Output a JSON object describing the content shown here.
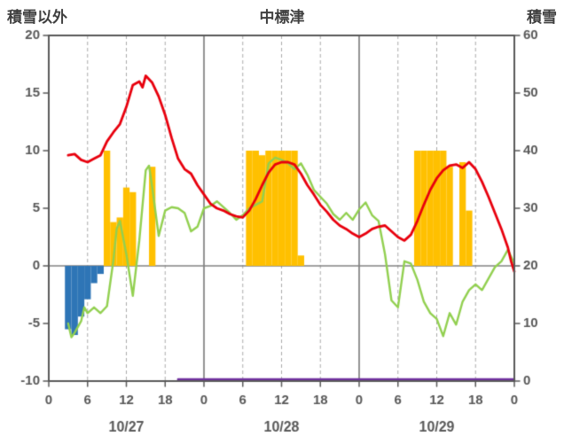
{
  "header": {
    "left_axis_title": "積雪以外",
    "station_title": "中標津",
    "right_axis_title": "積雪"
  },
  "colors": {
    "axis_border": "#595959",
    "tick_text": "#595959",
    "grid_dashed": "#aaaaaa",
    "day_boundary": "#6e6e6e",
    "zero_line": "#808080",
    "background": "#ffffff"
  },
  "chart_data": {
    "type": "line",
    "title": "中標津",
    "left_axis": {
      "label": "積雪以外",
      "min": -10,
      "max": 20,
      "ticks": [
        20,
        15,
        10,
        5,
        0,
        -5,
        -10
      ]
    },
    "right_axis": {
      "label": "積雪",
      "min": 0,
      "max": 60,
      "ticks": [
        60,
        50,
        40,
        30,
        20,
        10,
        0
      ]
    },
    "x_axis": {
      "min": 0,
      "max": 72,
      "tick_interval": 6,
      "tick_labels": [
        "0",
        "6",
        "12",
        "18",
        "0",
        "6",
        "12",
        "18",
        "0",
        "6",
        "12",
        "18",
        "0"
      ],
      "day_labels": [
        "10/27",
        "10/28",
        "10/29"
      ],
      "day_centers": [
        12,
        36,
        60
      ],
      "day_boundaries": [
        24,
        48
      ],
      "grid": "dashed-every-6h"
    },
    "series": [
      {
        "name": "orange-bars",
        "type": "bar",
        "axis": "left",
        "color": "#ffc000",
        "points": [
          [
            9,
            10
          ],
          [
            10,
            3.8
          ],
          [
            11,
            4.2
          ],
          [
            12,
            6.8
          ],
          [
            13,
            6.4
          ],
          [
            16,
            8.6
          ],
          [
            31,
            10
          ],
          [
            32,
            10
          ],
          [
            33,
            9.6
          ],
          [
            34,
            10
          ],
          [
            35,
            10
          ],
          [
            36,
            10
          ],
          [
            37,
            10
          ],
          [
            38,
            10
          ],
          [
            39,
            0.9
          ],
          [
            57,
            10
          ],
          [
            58,
            10
          ],
          [
            59,
            10
          ],
          [
            60,
            10
          ],
          [
            61,
            10
          ],
          [
            62,
            8.6
          ],
          [
            64,
            9.0
          ],
          [
            65,
            4.8
          ]
        ]
      },
      {
        "name": "blue-bars",
        "type": "bar",
        "axis": "left",
        "color": "#2e75b6",
        "points": [
          [
            3,
            -5.5
          ],
          [
            4,
            -6.0
          ],
          [
            5,
            -4.4
          ],
          [
            6,
            -2.9
          ],
          [
            7,
            -1.5
          ],
          [
            8,
            -0.7
          ]
        ]
      },
      {
        "name": "purple-line",
        "type": "line",
        "axis": "right",
        "color": "#7030a0",
        "width": 2.5,
        "points": [
          [
            20,
            0
          ],
          [
            72,
            0
          ]
        ]
      },
      {
        "name": "green-line",
        "type": "line",
        "axis": "left",
        "color": "#92d050",
        "width": 2.4,
        "points": [
          [
            3,
            -5.0
          ],
          [
            3.5,
            -6.2
          ],
          [
            4,
            -5.8
          ],
          [
            5,
            -4.8
          ],
          [
            5.5,
            -3.6
          ],
          [
            6,
            -4.1
          ],
          [
            7,
            -3.6
          ],
          [
            8,
            -4.1
          ],
          [
            9,
            -3.5
          ],
          [
            10,
            0.5
          ],
          [
            10.5,
            3.2
          ],
          [
            11,
            3.9
          ],
          [
            12,
            1.0
          ],
          [
            13,
            -2.6
          ],
          [
            14,
            2.2
          ],
          [
            15,
            8.3
          ],
          [
            15.5,
            8.7
          ],
          [
            16,
            6.8
          ],
          [
            17,
            2.6
          ],
          [
            18,
            4.8
          ],
          [
            19,
            5.1
          ],
          [
            20,
            5.0
          ],
          [
            21,
            4.6
          ],
          [
            22,
            3.0
          ],
          [
            23,
            3.4
          ],
          [
            24,
            5.0
          ],
          [
            25,
            5.2
          ],
          [
            26,
            5.6
          ],
          [
            27,
            5.1
          ],
          [
            28,
            4.6
          ],
          [
            29,
            4.0
          ],
          [
            30,
            4.4
          ],
          [
            31,
            5.0
          ],
          [
            32,
            5.3
          ],
          [
            33,
            5.6
          ],
          [
            34,
            8.9
          ],
          [
            35,
            9.4
          ],
          [
            36,
            9.2
          ],
          [
            37,
            8.9
          ],
          [
            38,
            8.4
          ],
          [
            39,
            8.9
          ],
          [
            40,
            7.9
          ],
          [
            41,
            6.6
          ],
          [
            42,
            6.0
          ],
          [
            43,
            5.4
          ],
          [
            44,
            4.5
          ],
          [
            45,
            4.0
          ],
          [
            46,
            4.6
          ],
          [
            47,
            4.0
          ],
          [
            48,
            4.9
          ],
          [
            49,
            5.5
          ],
          [
            50,
            4.4
          ],
          [
            51,
            3.9
          ],
          [
            52,
            1.0
          ],
          [
            53,
            -3.0
          ],
          [
            54,
            -3.6
          ],
          [
            55,
            0.4
          ],
          [
            56,
            0.2
          ],
          [
            57,
            -1.2
          ],
          [
            58,
            -3.1
          ],
          [
            59,
            -4.1
          ],
          [
            60,
            -4.6
          ],
          [
            61,
            -6.1
          ],
          [
            62,
            -4.1
          ],
          [
            63,
            -5.1
          ],
          [
            64,
            -3.1
          ],
          [
            65,
            -2.1
          ],
          [
            66,
            -1.6
          ],
          [
            67,
            -2.1
          ],
          [
            68,
            -1.1
          ],
          [
            69,
            -0.1
          ],
          [
            70,
            0.4
          ],
          [
            71,
            1.4
          ],
          [
            72,
            0.2
          ]
        ]
      },
      {
        "name": "red-line",
        "type": "line",
        "axis": "left",
        "color": "#e8000d",
        "width": 2.8,
        "points": [
          [
            3,
            9.6
          ],
          [
            4,
            9.7
          ],
          [
            5,
            9.2
          ],
          [
            6,
            9.0
          ],
          [
            7,
            9.3
          ],
          [
            8,
            9.6
          ],
          [
            9,
            10.8
          ],
          [
            10,
            11.6
          ],
          [
            11,
            12.3
          ],
          [
            12,
            13.8
          ],
          [
            13,
            15.7
          ],
          [
            14,
            16.0
          ],
          [
            14.5,
            15.5
          ],
          [
            15,
            16.5
          ],
          [
            16,
            15.9
          ],
          [
            17,
            14.7
          ],
          [
            18,
            13.1
          ],
          [
            19,
            11.1
          ],
          [
            20,
            9.3
          ],
          [
            21,
            8.4
          ],
          [
            22,
            8.0
          ],
          [
            23,
            7.0
          ],
          [
            24,
            6.2
          ],
          [
            25,
            5.4
          ],
          [
            26,
            5.0
          ],
          [
            27,
            4.8
          ],
          [
            28,
            4.5
          ],
          [
            29,
            4.3
          ],
          [
            30,
            4.2
          ],
          [
            31,
            4.8
          ],
          [
            32,
            5.8
          ],
          [
            33,
            7.0
          ],
          [
            34,
            8.1
          ],
          [
            35,
            8.8
          ],
          [
            36,
            9.0
          ],
          [
            37,
            9.0
          ],
          [
            38,
            8.8
          ],
          [
            39,
            8.0
          ],
          [
            40,
            7.0
          ],
          [
            41,
            6.2
          ],
          [
            42,
            5.3
          ],
          [
            43,
            4.7
          ],
          [
            44,
            4.0
          ],
          [
            45,
            3.5
          ],
          [
            46,
            3.2
          ],
          [
            47,
            2.8
          ],
          [
            48,
            2.5
          ],
          [
            49,
            2.8
          ],
          [
            50,
            3.2
          ],
          [
            51,
            3.4
          ],
          [
            52,
            3.5
          ],
          [
            53,
            3.0
          ],
          [
            54,
            2.5
          ],
          [
            55,
            2.2
          ],
          [
            56,
            2.7
          ],
          [
            57,
            3.9
          ],
          [
            58,
            5.3
          ],
          [
            59,
            6.6
          ],
          [
            60,
            7.6
          ],
          [
            61,
            8.3
          ],
          [
            62,
            8.7
          ],
          [
            63,
            8.8
          ],
          [
            64,
            8.5
          ],
          [
            65,
            9.0
          ],
          [
            66,
            8.4
          ],
          [
            67,
            7.3
          ],
          [
            68,
            6.0
          ],
          [
            69,
            4.6
          ],
          [
            70,
            3.2
          ],
          [
            71,
            1.6
          ],
          [
            71.5,
            0.4
          ],
          [
            72,
            -0.5
          ]
        ]
      }
    ]
  }
}
